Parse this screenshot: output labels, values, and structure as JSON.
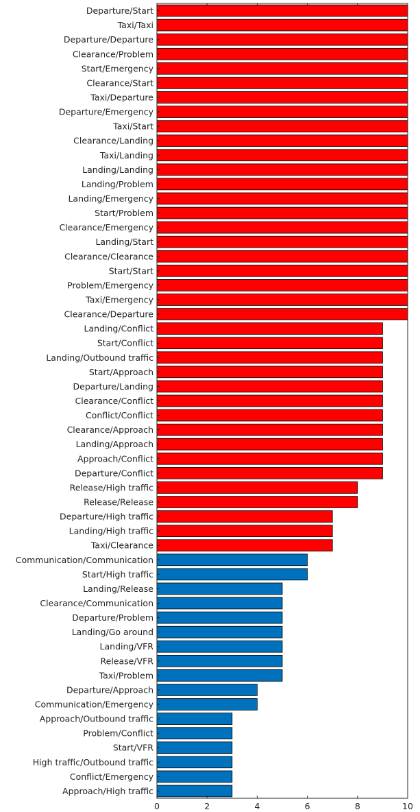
{
  "chart_data": {
    "type": "bar",
    "orientation": "horizontal",
    "title": "",
    "xlabel": "",
    "ylabel": "",
    "xlim": [
      0,
      10
    ],
    "xticks": [
      0,
      2,
      4,
      6,
      8,
      10
    ],
    "grid": false,
    "colors": {
      "high": "#ff0000",
      "low": "#0072bd",
      "edge": "#000000"
    },
    "categories": [
      "Departure/Start",
      "Taxi/Taxi",
      "Departure/Departure",
      "Clearance/Problem",
      "Start/Emergency",
      "Clearance/Start",
      "Taxi/Departure",
      "Departure/Emergency",
      "Taxi/Start",
      "Clearance/Landing",
      "Taxi/Landing",
      "Landing/Landing",
      "Landing/Problem",
      "Landing/Emergency",
      "Start/Problem",
      "Clearance/Emergency",
      "Landing/Start",
      "Clearance/Clearance",
      "Start/Start",
      "Problem/Emergency",
      "Taxi/Emergency",
      "Clearance/Departure",
      "Landing/Conflict",
      "Start/Conflict",
      "Landing/Outbound traffic",
      "Start/Approach",
      "Departure/Landing",
      "Clearance/Conflict",
      "Conflict/Conflict",
      "Clearance/Approach",
      "Landing/Approach",
      "Approach/Conflict",
      "Departure/Conflict",
      "Release/High traffic",
      "Release/Release",
      "Departure/High traffic",
      "Landing/High traffic",
      "Taxi/Clearance",
      "Communication/Communication",
      "Start/High traffic",
      "Landing/Release",
      "Clearance/Communication",
      "Departure/Problem",
      "Landing/Go around",
      "Landing/VFR",
      "Release/VFR",
      "Taxi/Problem",
      "Departure/Approach",
      "Communication/Emergency",
      "Approach/Outbound traffic",
      "Problem/Conflict",
      "Start/VFR",
      "High traffic/Outbound traffic",
      "Conflict/Emergency",
      "Approach/High traffic"
    ],
    "values": [
      10,
      10,
      10,
      10,
      10,
      10,
      10,
      10,
      10,
      10,
      10,
      10,
      10,
      10,
      10,
      10,
      10,
      10,
      10,
      10,
      10,
      10,
      9,
      9,
      9,
      9,
      9,
      9,
      9,
      9,
      9,
      9,
      9,
      8,
      8,
      7,
      7,
      7,
      6,
      6,
      5,
      5,
      5,
      5,
      5,
      5,
      5,
      4,
      4,
      3,
      3,
      3,
      3,
      3,
      3
    ],
    "series_color": [
      "high",
      "high",
      "high",
      "high",
      "high",
      "high",
      "high",
      "high",
      "high",
      "high",
      "high",
      "high",
      "high",
      "high",
      "high",
      "high",
      "high",
      "high",
      "high",
      "high",
      "high",
      "high",
      "high",
      "high",
      "high",
      "high",
      "high",
      "high",
      "high",
      "high",
      "high",
      "high",
      "high",
      "high",
      "high",
      "high",
      "high",
      "high",
      "low",
      "low",
      "low",
      "low",
      "low",
      "low",
      "low",
      "low",
      "low",
      "low",
      "low",
      "low",
      "low",
      "low",
      "low",
      "low",
      "low"
    ]
  }
}
